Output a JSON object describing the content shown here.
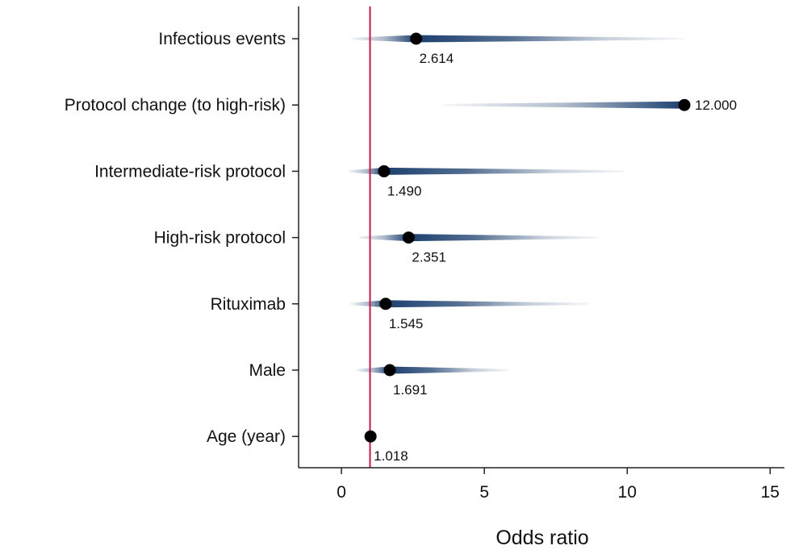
{
  "chart_data": {
    "type": "scatter",
    "xlabel": "Odds ratio",
    "xlim": [
      -1.5,
      15.5
    ],
    "xticks": [
      0,
      5,
      10,
      15
    ],
    "reference_line": {
      "x": 1,
      "color": "#c8174a"
    },
    "colors": {
      "band": "#1c3f6e",
      "point": "#000000",
      "axis": "#222222"
    },
    "rows": [
      {
        "label": "Infectious events",
        "value": 2.614,
        "value_label": "2.614",
        "ci_low": 0.35,
        "ci_high": 12.0,
        "label_side": "below"
      },
      {
        "label": "Protocol change (to high-risk)",
        "value": 12.0,
        "value_label": "12.000",
        "ci_low": 3.6,
        "ci_high": 12.0,
        "label_side": "right"
      },
      {
        "label": "Intermediate-risk protocol",
        "value": 1.49,
        "value_label": "1.490",
        "ci_low": 0.25,
        "ci_high": 9.9,
        "label_side": "below"
      },
      {
        "label": "High-risk protocol",
        "value": 2.351,
        "value_label": "2.351",
        "ci_low": 0.6,
        "ci_high": 9.0,
        "label_side": "below"
      },
      {
        "label": "Rituximab",
        "value": 1.545,
        "value_label": "1.545",
        "ci_low": 0.3,
        "ci_high": 8.7,
        "label_side": "below"
      },
      {
        "label": "Male",
        "value": 1.691,
        "value_label": "1.691",
        "ci_low": 0.5,
        "ci_high": 5.9,
        "label_side": "below"
      },
      {
        "label": "Age (year)",
        "value": 1.018,
        "value_label": "1.018",
        "ci_low": 0.99,
        "ci_high": 1.05,
        "label_side": "below"
      }
    ]
  }
}
